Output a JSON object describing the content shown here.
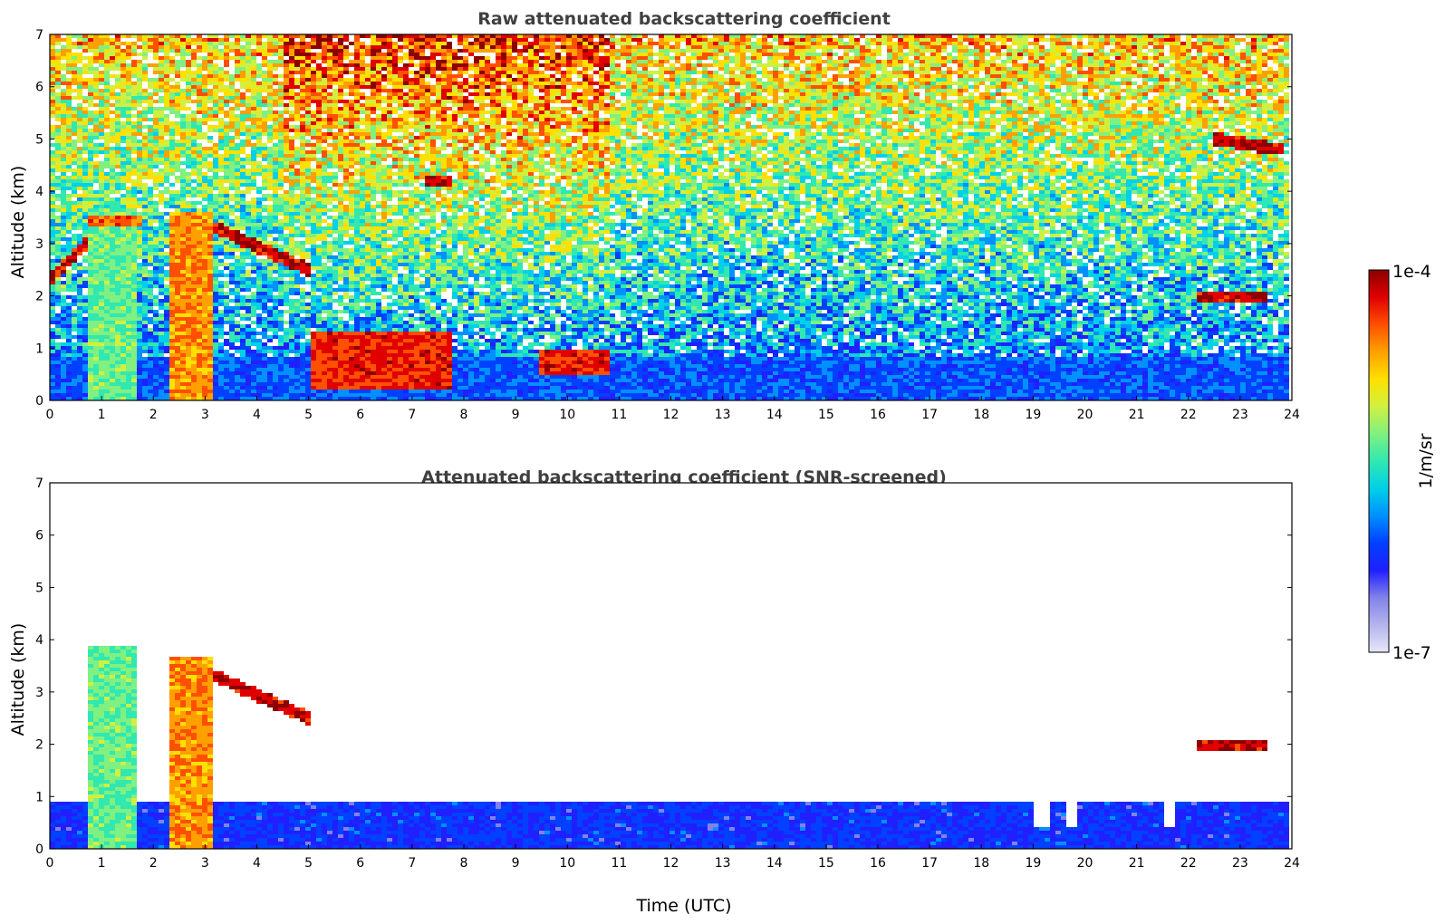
{
  "chart_data": [
    {
      "type": "heatmap",
      "title": "Raw attenuated backscattering coefficient",
      "xlabel": "",
      "ylabel": "Altitude (km)",
      "xlim": [
        0,
        24
      ],
      "ylim": [
        0,
        7
      ],
      "xticks": [
        0,
        1,
        2,
        3,
        4,
        5,
        6,
        7,
        8,
        9,
        10,
        11,
        12,
        13,
        14,
        15,
        16,
        17,
        18,
        19,
        20,
        21,
        22,
        23,
        24
      ],
      "yticks": [
        0,
        1,
        2,
        3,
        4,
        5,
        6,
        7
      ],
      "screened": false,
      "features": [
        {
          "kind": "aerosol-layer",
          "x": [
            0,
            24
          ],
          "y": [
            0,
            0.8
          ],
          "level": 0.3
        },
        {
          "kind": "column",
          "x": [
            0.7,
            1.7
          ],
          "y": [
            0,
            3.7
          ],
          "level": 0.55
        },
        {
          "kind": "column",
          "x": [
            2.3,
            3.2
          ],
          "y": [
            0,
            3.6
          ],
          "level": 0.8
        },
        {
          "kind": "cloud-top",
          "x": [
            0.7,
            1.8
          ],
          "y": 3.45,
          "level": 0.85
        },
        {
          "kind": "cloud-band",
          "x": [
            0,
            0.7
          ],
          "y": [
            2.3,
            3.0
          ],
          "level": 0.95
        },
        {
          "kind": "cloud-band",
          "x": [
            3.2,
            5.0
          ],
          "y": [
            3.3,
            2.5
          ],
          "level": 0.95
        },
        {
          "kind": "cloud-band",
          "x": [
            7.2,
            7.8
          ],
          "y": 4.2,
          "level": 0.95
        },
        {
          "kind": "cloud-band",
          "x": [
            22.2,
            23.5
          ],
          "y": 1.95,
          "level": 0.95
        },
        {
          "kind": "cloud-band",
          "x": [
            22.5,
            23.8
          ],
          "y": [
            5.0,
            4.8
          ],
          "level": 0.95
        },
        {
          "kind": "low-cloud",
          "x": [
            5.0,
            7.8
          ],
          "y": [
            0.2,
            1.3
          ],
          "level": 0.9
        },
        {
          "kind": "low-cloud",
          "x": [
            9.5,
            10.8
          ],
          "y": [
            0.5,
            1.0
          ],
          "level": 0.9
        },
        {
          "kind": "cloud-streak",
          "x": [
            21.6,
            22.3
          ],
          "y": [
            6.9,
            5.5
          ],
          "level": 0.75
        }
      ]
    },
    {
      "type": "heatmap",
      "title": "Attenuated backscattering coefficient (SNR-screened)",
      "xlabel": "Time (UTC)",
      "ylabel": "Altitude (km)",
      "xlim": [
        0,
        24
      ],
      "ylim": [
        0,
        7
      ],
      "xticks": [
        0,
        1,
        2,
        3,
        4,
        5,
        6,
        7,
        8,
        9,
        10,
        11,
        12,
        13,
        14,
        15,
        16,
        17,
        18,
        19,
        20,
        21,
        22,
        23,
        24
      ],
      "yticks": [
        0,
        1,
        2,
        3,
        4,
        5,
        6,
        7
      ],
      "screened": true,
      "features": [
        {
          "kind": "aerosol-layer",
          "x": [
            0,
            24
          ],
          "y": [
            0,
            0.9
          ],
          "level": 0.25
        },
        {
          "kind": "column",
          "x": [
            0.7,
            1.7
          ],
          "y": [
            0,
            3.9
          ],
          "level": 0.55
        },
        {
          "kind": "column",
          "x": [
            2.3,
            3.2
          ],
          "y": [
            0,
            3.7
          ],
          "level": 0.8
        },
        {
          "kind": "cloud-band",
          "x": [
            3.2,
            5.0
          ],
          "y": [
            3.3,
            2.5
          ],
          "level": 0.95
        },
        {
          "kind": "cloud-band",
          "x": [
            22.2,
            23.5
          ],
          "y": 1.95,
          "level": 0.95
        },
        {
          "kind": "gap",
          "x": [
            19.0,
            19.3
          ],
          "y": [
            0.4,
            1.2
          ]
        },
        {
          "kind": "gap",
          "x": [
            19.6,
            19.9
          ],
          "y": [
            0.4,
            1.2
          ]
        },
        {
          "kind": "gap",
          "x": [
            21.5,
            21.7
          ],
          "y": [
            0.4,
            1.2
          ]
        }
      ]
    }
  ],
  "colorbar": {
    "min_label": "1e-7",
    "max_label": "1e-4",
    "label": "1/m/sr",
    "colors": [
      "#e6e6f8",
      "#b4b4ee",
      "#8282ea",
      "#2020ff",
      "#0040ff",
      "#0090ff",
      "#00d0e8",
      "#30e8b0",
      "#80f080",
      "#d0f040",
      "#ffe000",
      "#ffa000",
      "#ff5000",
      "#e00000",
      "#8b0000"
    ]
  }
}
